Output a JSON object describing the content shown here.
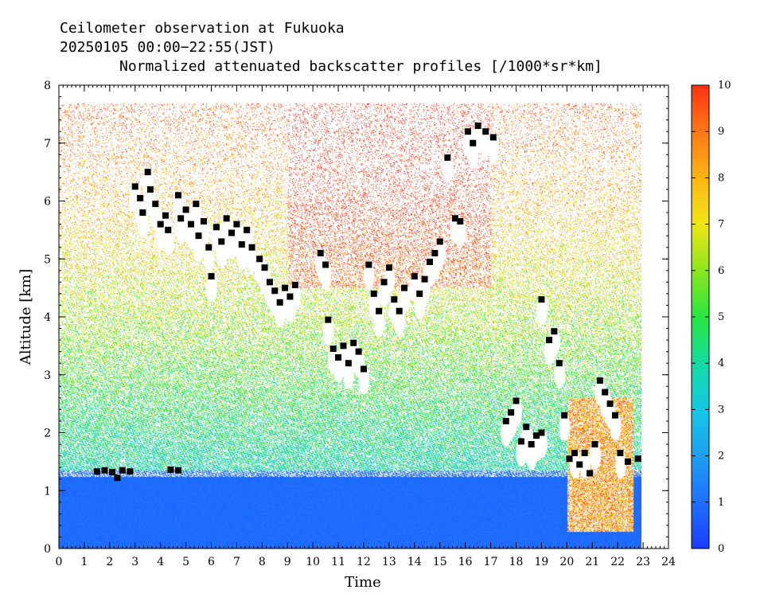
{
  "header": {
    "line1": "Ceilometer observation at Fukuoka",
    "line2": "20250105  00:00−22:55(JST)",
    "line3": "Normalized attenuated backscatter profiles [/1000*sr*km]"
  },
  "chart_data": {
    "type": "heatmap",
    "xlabel": "Time",
    "ylabel": "Altitude [km]",
    "xlim": [
      0,
      24
    ],
    "ylim": [
      0,
      8
    ],
    "x_ticks": [
      "0",
      "1",
      "2",
      "3",
      "4",
      "5",
      "6",
      "7",
      "8",
      "9",
      "10",
      "11",
      "12",
      "13",
      "14",
      "15",
      "16",
      "17",
      "18",
      "19",
      "20",
      "21",
      "22",
      "23",
      "24"
    ],
    "y_ticks": [
      "0",
      "1",
      "2",
      "3",
      "4",
      "5",
      "6",
      "7",
      "8"
    ],
    "data_time_range": [
      0,
      22.92
    ],
    "data_altitude_top": 7.68,
    "colorbar": {
      "min": 0,
      "max": 10,
      "ticks": [
        "0",
        "1",
        "2",
        "3",
        "4",
        "5",
        "6",
        "7",
        "8",
        "9",
        "10"
      ],
      "colors": [
        "#1a3cff",
        "#1f6fff",
        "#1ea0f0",
        "#14c8e6",
        "#14dca0",
        "#28e640",
        "#8ce61e",
        "#f0e614",
        "#ffb414",
        "#ff7814",
        "#ff3214"
      ]
    },
    "cloud_base_points": [
      [
        1.5,
        1.33
      ],
      [
        1.8,
        1.35
      ],
      [
        2.1,
        1.32
      ],
      [
        2.3,
        1.22
      ],
      [
        2.5,
        1.35
      ],
      [
        2.8,
        1.33
      ],
      [
        4.4,
        1.36
      ],
      [
        4.7,
        1.35
      ],
      [
        3.0,
        6.25
      ],
      [
        3.2,
        6.05
      ],
      [
        3.3,
        5.8
      ],
      [
        3.5,
        6.5
      ],
      [
        3.6,
        6.2
      ],
      [
        3.8,
        5.95
      ],
      [
        4.0,
        5.6
      ],
      [
        4.2,
        5.75
      ],
      [
        4.3,
        5.5
      ],
      [
        4.7,
        6.1
      ],
      [
        4.8,
        5.7
      ],
      [
        5.0,
        5.85
      ],
      [
        5.2,
        5.6
      ],
      [
        5.4,
        5.95
      ],
      [
        5.5,
        5.4
      ],
      [
        5.7,
        5.65
      ],
      [
        5.9,
        5.2
      ],
      [
        6.0,
        4.7
      ],
      [
        6.2,
        5.55
      ],
      [
        6.4,
        5.3
      ],
      [
        6.6,
        5.7
      ],
      [
        6.8,
        5.45
      ],
      [
        7.0,
        5.6
      ],
      [
        7.2,
        5.25
      ],
      [
        7.4,
        5.5
      ],
      [
        7.6,
        5.2
      ],
      [
        7.9,
        5.0
      ],
      [
        8.1,
        4.85
      ],
      [
        8.3,
        4.6
      ],
      [
        8.5,
        4.45
      ],
      [
        8.7,
        4.25
      ],
      [
        8.9,
        4.5
      ],
      [
        9.1,
        4.35
      ],
      [
        9.3,
        4.55
      ],
      [
        10.3,
        5.1
      ],
      [
        10.5,
        4.9
      ],
      [
        10.6,
        3.95
      ],
      [
        10.8,
        3.45
      ],
      [
        11.0,
        3.3
      ],
      [
        11.2,
        3.5
      ],
      [
        11.4,
        3.2
      ],
      [
        11.6,
        3.55
      ],
      [
        11.8,
        3.4
      ],
      [
        12.0,
        3.1
      ],
      [
        12.2,
        4.9
      ],
      [
        12.4,
        4.4
      ],
      [
        12.6,
        4.1
      ],
      [
        12.8,
        4.6
      ],
      [
        13.0,
        4.85
      ],
      [
        13.2,
        4.3
      ],
      [
        13.4,
        4.1
      ],
      [
        13.6,
        4.5
      ],
      [
        14.0,
        4.7
      ],
      [
        14.2,
        4.4
      ],
      [
        14.4,
        4.65
      ],
      [
        14.6,
        4.95
      ],
      [
        14.8,
        5.1
      ],
      [
        15.0,
        5.3
      ],
      [
        15.3,
        6.75
      ],
      [
        15.6,
        5.7
      ],
      [
        15.8,
        5.65
      ],
      [
        16.1,
        7.2
      ],
      [
        16.3,
        7.0
      ],
      [
        16.5,
        7.3
      ],
      [
        16.8,
        7.2
      ],
      [
        17.1,
        7.1
      ],
      [
        17.6,
        2.2
      ],
      [
        17.8,
        2.35
      ],
      [
        18.0,
        2.55
      ],
      [
        18.2,
        1.85
      ],
      [
        18.4,
        2.1
      ],
      [
        18.6,
        1.8
      ],
      [
        18.8,
        1.95
      ],
      [
        19.0,
        2.0
      ],
      [
        19.0,
        4.3
      ],
      [
        19.3,
        3.6
      ],
      [
        19.5,
        3.75
      ],
      [
        19.7,
        3.2
      ],
      [
        19.9,
        2.3
      ],
      [
        20.1,
        1.55
      ],
      [
        20.3,
        1.65
      ],
      [
        20.5,
        1.45
      ],
      [
        20.7,
        1.65
      ],
      [
        20.9,
        1.3
      ],
      [
        21.1,
        1.8
      ],
      [
        21.3,
        2.9
      ],
      [
        21.5,
        2.7
      ],
      [
        21.7,
        2.5
      ],
      [
        21.9,
        2.3
      ],
      [
        22.1,
        1.65
      ],
      [
        22.4,
        1.5
      ],
      [
        22.8,
        1.55
      ]
    ]
  }
}
